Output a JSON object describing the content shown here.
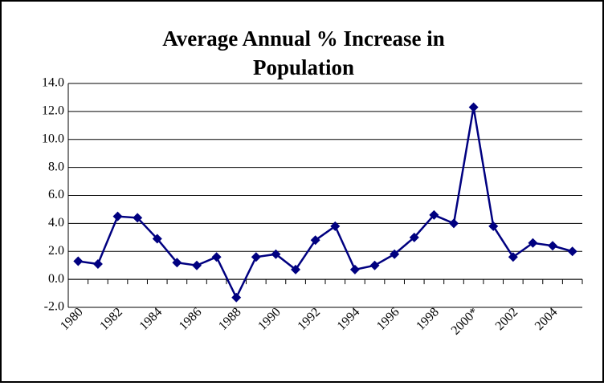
{
  "chart_data": {
    "type": "line",
    "title": "Average Annual % Increase in Population",
    "categories": [
      "1980",
      null,
      "1982",
      null,
      "1984",
      null,
      "1986",
      null,
      "1988",
      null,
      "1990",
      null,
      "1992",
      null,
      "1994",
      null,
      "1996",
      null,
      "1998",
      null,
      "2000*",
      null,
      "2002",
      null,
      "2004",
      null
    ],
    "values": [
      1.3,
      1.1,
      4.5,
      4.4,
      2.9,
      1.2,
      1.0,
      1.6,
      -1.3,
      1.6,
      1.8,
      0.7,
      2.8,
      3.8,
      0.7,
      1.0,
      1.8,
      3.0,
      4.6,
      4.0,
      12.3,
      3.8,
      1.6,
      2.6,
      2.4,
      2.0
    ],
    "color": "#000080",
    "ylim": [
      -2,
      14
    ],
    "yticks": [
      {
        "value": -2,
        "label": "-2.0"
      },
      {
        "value": 0,
        "label": "0.0"
      },
      {
        "value": 2,
        "label": "2.0"
      },
      {
        "value": 4,
        "label": "4.0"
      },
      {
        "value": 6,
        "label": "6.0"
      },
      {
        "value": 8,
        "label": "8.0"
      },
      {
        "value": 10,
        "label": "10.0"
      },
      {
        "value": 12,
        "label": "12.0"
      },
      {
        "value": 14,
        "label": "14.0"
      }
    ],
    "grid": true
  }
}
